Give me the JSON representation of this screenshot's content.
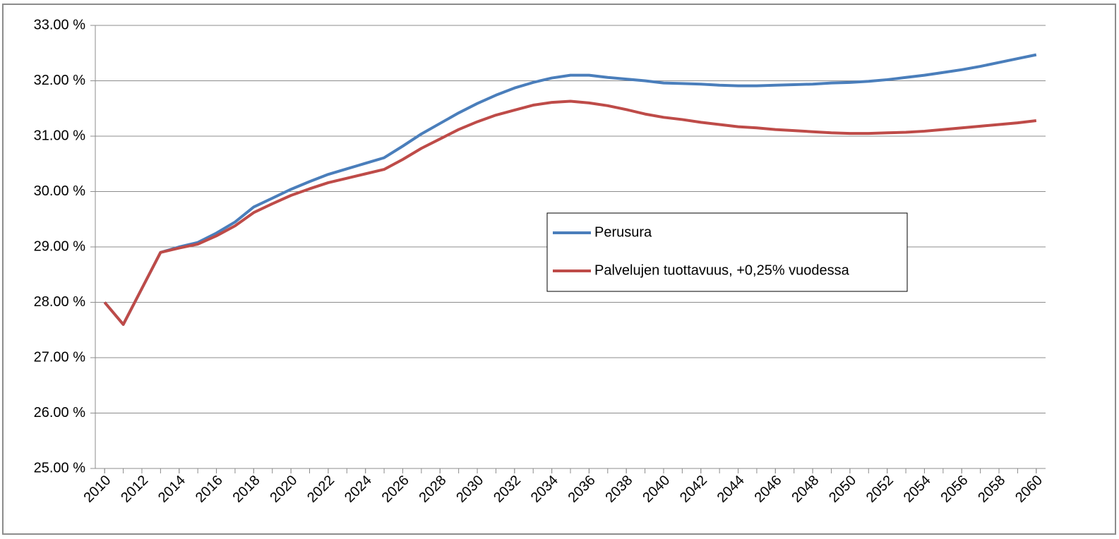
{
  "chart_data": {
    "type": "line",
    "x": [
      2010,
      2011,
      2012,
      2013,
      2014,
      2015,
      2016,
      2017,
      2018,
      2019,
      2020,
      2021,
      2022,
      2023,
      2024,
      2025,
      2026,
      2027,
      2028,
      2029,
      2030,
      2031,
      2032,
      2033,
      2034,
      2035,
      2036,
      2037,
      2038,
      2039,
      2040,
      2041,
      2042,
      2043,
      2044,
      2045,
      2046,
      2047,
      2048,
      2049,
      2050,
      2051,
      2052,
      2053,
      2054,
      2055,
      2056,
      2057,
      2058,
      2059,
      2060
    ],
    "series": [
      {
        "name": "Perusura",
        "color": "#4a7ebb",
        "values": [
          28.0,
          27.6,
          28.25,
          28.9,
          29.0,
          29.08,
          29.25,
          29.45,
          29.72,
          29.88,
          30.04,
          30.18,
          30.31,
          30.41,
          30.51,
          30.61,
          30.82,
          31.04,
          31.23,
          31.42,
          31.59,
          31.74,
          31.87,
          31.97,
          32.05,
          32.1,
          32.1,
          32.06,
          32.03,
          32.0,
          31.96,
          31.95,
          31.94,
          31.92,
          31.91,
          31.91,
          31.92,
          31.93,
          31.94,
          31.96,
          31.97,
          31.99,
          32.02,
          32.06,
          32.1,
          32.15,
          32.2,
          32.26,
          32.33,
          32.4,
          32.47
        ]
      },
      {
        "name": "Palvelujen tuottavuus, +0,25% vuodessa",
        "color": "#be4b48",
        "values": [
          28.0,
          27.6,
          28.25,
          28.9,
          28.98,
          29.05,
          29.2,
          29.38,
          29.62,
          29.78,
          29.93,
          30.05,
          30.16,
          30.24,
          30.32,
          30.4,
          30.58,
          30.78,
          30.95,
          31.12,
          31.26,
          31.38,
          31.47,
          31.56,
          31.61,
          31.63,
          31.6,
          31.55,
          31.48,
          31.4,
          31.34,
          31.3,
          31.25,
          31.21,
          31.17,
          31.15,
          31.12,
          31.1,
          31.08,
          31.06,
          31.05,
          31.05,
          31.06,
          31.07,
          31.09,
          31.12,
          31.15,
          31.18,
          31.21,
          31.24,
          31.28
        ]
      }
    ],
    "xlim": [
      2009.5,
      2060.5
    ],
    "xticks": [
      2010,
      2012,
      2014,
      2016,
      2018,
      2020,
      2022,
      2024,
      2026,
      2028,
      2030,
      2032,
      2034,
      2036,
      2038,
      2040,
      2042,
      2044,
      2046,
      2048,
      2050,
      2052,
      2054,
      2056,
      2058,
      2060
    ],
    "ylim": [
      25,
      33
    ],
    "yticks": [
      {
        "value": 25,
        "label": "25.00 %"
      },
      {
        "value": 26,
        "label": "26.00 %"
      },
      {
        "value": 27,
        "label": "27.00 %"
      },
      {
        "value": 28,
        "label": "28.00 %"
      },
      {
        "value": 29,
        "label": "29.00 %"
      },
      {
        "value": 30,
        "label": "30.00 %"
      },
      {
        "value": 31,
        "label": "31.00 %"
      },
      {
        "value": 32,
        "label": "32.00 %"
      },
      {
        "value": 33,
        "label": "33.00 %"
      }
    ],
    "grid": true,
    "legend": "center"
  }
}
